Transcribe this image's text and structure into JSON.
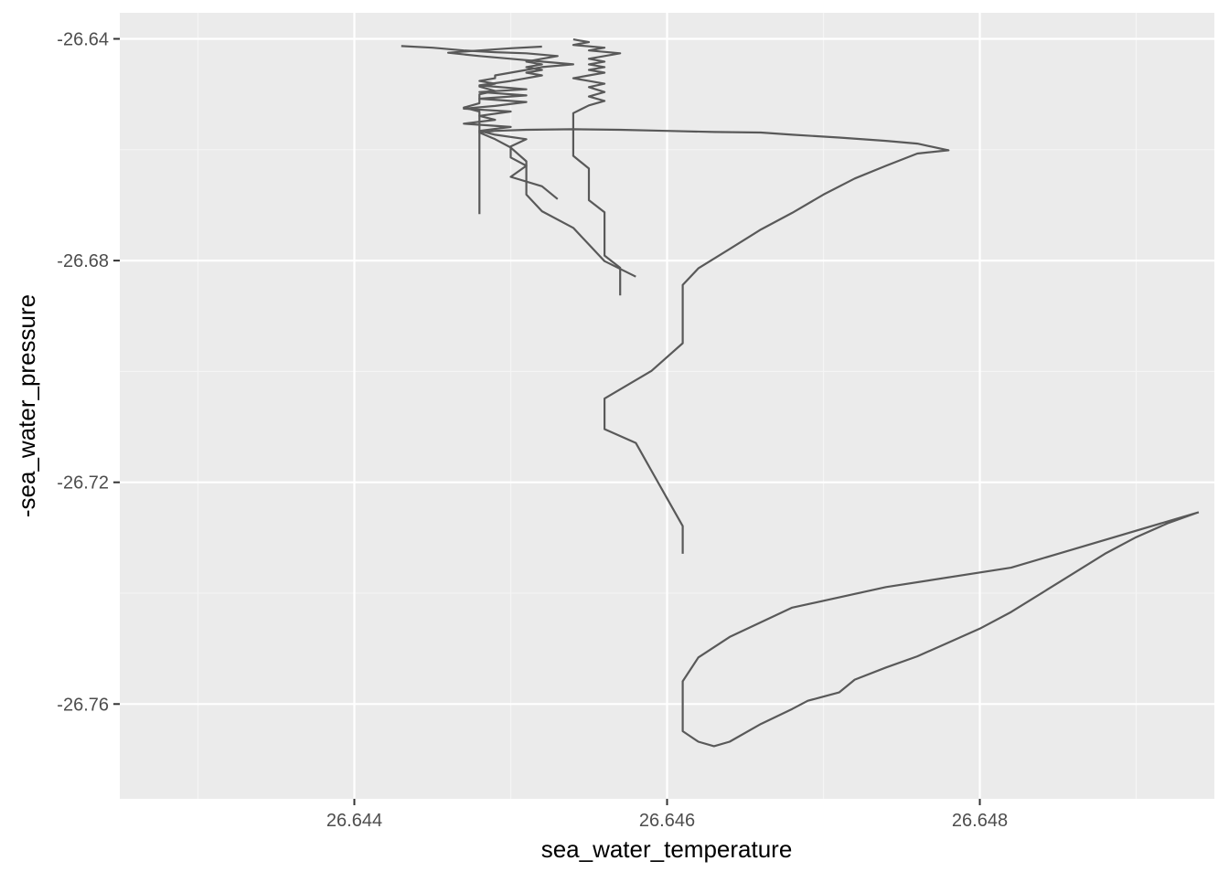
{
  "chart_data": {
    "type": "line",
    "title": "",
    "xlabel": "sea_water_temperature",
    "ylabel": "-sea_water_pressure",
    "xlim": [
      26.6425,
      26.6495
    ],
    "ylim": [
      -26.7771,
      -26.6353
    ],
    "x_ticks": [
      26.644,
      26.646,
      26.648
    ],
    "x_tick_labels": [
      "26.644",
      "26.646",
      "26.648"
    ],
    "y_ticks": [
      -26.64,
      -26.68,
      -26.72,
      -26.76
    ],
    "y_tick_labels": [
      "-26.64",
      "-26.68",
      "-26.72",
      "-26.76"
    ],
    "grid": true,
    "legend": "none",
    "colors": {
      "panel_background": "#EBEBEB",
      "grid_major": "#FFFFFF",
      "grid_minor": "#F5F5F5",
      "line": "#595959",
      "tick_label": "#4D4D4D",
      "axis_title": "#000000"
    },
    "series": [
      {
        "points": [
          [
            26.6494,
            -26.7254
          ],
          [
            26.6485,
            -26.7329
          ],
          [
            26.6482,
            -26.7354
          ],
          [
            26.6474,
            -26.7389
          ],
          [
            26.6468,
            -26.7426
          ],
          [
            26.6464,
            -26.7479
          ],
          [
            26.6462,
            -26.7516
          ],
          [
            26.6461,
            -26.7559
          ],
          [
            26.6461,
            -26.7604
          ],
          [
            26.6461,
            -26.7649
          ],
          [
            26.6462,
            -26.7668
          ],
          [
            26.6463,
            -26.7676
          ],
          [
            26.6464,
            -26.7668
          ],
          [
            26.6466,
            -26.7636
          ],
          [
            26.6468,
            -26.7609
          ],
          [
            26.6469,
            -26.7594
          ],
          [
            26.6471,
            -26.7579
          ],
          [
            26.6472,
            -26.7556
          ],
          [
            26.6474,
            -26.7534
          ],
          [
            26.6476,
            -26.7514
          ],
          [
            26.6478,
            -26.7489
          ],
          [
            26.648,
            -26.7464
          ],
          [
            26.6482,
            -26.7434
          ],
          [
            26.6484,
            -26.7399
          ],
          [
            26.6486,
            -26.7364
          ],
          [
            26.6488,
            -26.7329
          ],
          [
            26.649,
            -26.7299
          ],
          [
            26.6492,
            -26.7274
          ],
          [
            26.6494,
            -26.7254
          ]
        ]
      },
      {
        "points": [
          [
            26.6461,
            -26.7329
          ],
          [
            26.6461,
            -26.7279
          ],
          [
            26.646,
            -26.7229
          ],
          [
            26.6459,
            -26.7179
          ],
          [
            26.6458,
            -26.7129
          ],
          [
            26.6456,
            -26.7104
          ],
          [
            26.6456,
            -26.7049
          ],
          [
            26.6459,
            -26.6999
          ],
          [
            26.6461,
            -26.6949
          ],
          [
            26.6461,
            -26.6899
          ],
          [
            26.6461,
            -26.6844
          ],
          [
            26.6462,
            -26.6814
          ],
          [
            26.6464,
            -26.6779
          ],
          [
            26.6466,
            -26.6744
          ],
          [
            26.6468,
            -26.6714
          ],
          [
            26.647,
            -26.6681
          ],
          [
            26.6472,
            -26.6652
          ],
          [
            26.6474,
            -26.6629
          ],
          [
            26.6476,
            -26.6607
          ],
          [
            26.6478,
            -26.6601
          ],
          [
            26.6476,
            -26.6589
          ],
          [
            26.6474,
            -26.6584
          ],
          [
            26.6471,
            -26.6578
          ],
          [
            26.6468,
            -26.6573
          ],
          [
            26.6466,
            -26.6569
          ],
          [
            26.6463,
            -26.6568
          ],
          [
            26.646,
            -26.6566
          ],
          [
            26.6457,
            -26.6564
          ],
          [
            26.6454,
            -26.6563
          ],
          [
            26.6451,
            -26.6564
          ],
          [
            26.6449,
            -26.6566
          ],
          [
            26.6448,
            -26.6569
          ],
          [
            26.6449,
            -26.6581
          ],
          [
            26.645,
            -26.6596
          ],
          [
            26.6451,
            -26.6621
          ],
          [
            26.6451,
            -26.6651
          ],
          [
            26.6451,
            -26.6681
          ],
          [
            26.6452,
            -26.6711
          ],
          [
            26.6454,
            -26.6741
          ],
          [
            26.6455,
            -26.6771
          ],
          [
            26.6456,
            -26.6801
          ],
          [
            26.6458,
            -26.6829
          ]
        ]
      },
      {
        "points": [
          [
            26.6443,
            -26.6413
          ],
          [
            26.6445,
            -26.6416
          ],
          [
            26.6447,
            -26.6421
          ],
          [
            26.6449,
            -26.6424
          ],
          [
            26.6451,
            -26.6426
          ],
          [
            26.6453,
            -26.6431
          ],
          [
            26.6452,
            -26.6436
          ],
          [
            26.6451,
            -26.6441
          ],
          [
            26.6452,
            -26.6446
          ],
          [
            26.6451,
            -26.6451
          ],
          [
            26.6452,
            -26.6456
          ],
          [
            26.6451,
            -26.6461
          ],
          [
            26.6452,
            -26.6466
          ],
          [
            26.6451,
            -26.6471
          ],
          [
            26.645,
            -26.6476
          ],
          [
            26.6448,
            -26.6484
          ],
          [
            26.6451,
            -26.6491
          ],
          [
            26.6448,
            -26.6496
          ],
          [
            26.6451,
            -26.6502
          ],
          [
            26.6448,
            -26.6508
          ],
          [
            26.6451,
            -26.6514
          ],
          [
            26.6449,
            -26.6521
          ],
          [
            26.6447,
            -26.6526
          ],
          [
            26.645,
            -26.6531
          ],
          [
            26.6448,
            -26.6539
          ],
          [
            26.6449,
            -26.6546
          ],
          [
            26.6447,
            -26.6553
          ],
          [
            26.645,
            -26.6559
          ],
          [
            26.6448,
            -26.6566
          ],
          [
            26.6449,
            -26.6573
          ],
          [
            26.6451,
            -26.6581
          ],
          [
            26.645,
            -26.6594
          ],
          [
            26.645,
            -26.6614
          ],
          [
            26.6451,
            -26.6629
          ],
          [
            26.645,
            -26.6649
          ],
          [
            26.6452,
            -26.6666
          ],
          [
            26.6453,
            -26.6689
          ]
        ]
      },
      {
        "points": [
          [
            26.6454,
            -26.6401
          ],
          [
            26.6455,
            -26.6406
          ],
          [
            26.6454,
            -26.6411
          ],
          [
            26.6456,
            -26.6416
          ],
          [
            26.6455,
            -26.6421
          ],
          [
            26.6457,
            -26.6426
          ],
          [
            26.6456,
            -26.6431
          ],
          [
            26.6455,
            -26.6436
          ],
          [
            26.6456,
            -26.6441
          ],
          [
            26.6455,
            -26.6446
          ],
          [
            26.6456,
            -26.6451
          ],
          [
            26.6455,
            -26.6456
          ],
          [
            26.6456,
            -26.6461
          ],
          [
            26.6455,
            -26.6466
          ],
          [
            26.6454,
            -26.6471
          ],
          [
            26.6455,
            -26.6476
          ],
          [
            26.6456,
            -26.6481
          ],
          [
            26.6455,
            -26.6487
          ],
          [
            26.6456,
            -26.6496
          ],
          [
            26.6455,
            -26.6504
          ],
          [
            26.6456,
            -26.6512
          ],
          [
            26.6455,
            -26.652
          ],
          [
            26.6454,
            -26.6534
          ],
          [
            26.6454,
            -26.6552
          ],
          [
            26.6454,
            -26.6571
          ],
          [
            26.6454,
            -26.6591
          ],
          [
            26.6454,
            -26.6611
          ],
          [
            26.6455,
            -26.6634
          ],
          [
            26.6455,
            -26.6663
          ],
          [
            26.6455,
            -26.6691
          ],
          [
            26.6456,
            -26.6713
          ],
          [
            26.6456,
            -26.6734
          ],
          [
            26.6456,
            -26.6761
          ],
          [
            26.6456,
            -26.6791
          ],
          [
            26.6457,
            -26.6813
          ],
          [
            26.6457,
            -26.6836
          ],
          [
            26.6457,
            -26.6863
          ]
        ]
      },
      {
        "points": [
          [
            26.6452,
            -26.6414
          ],
          [
            26.645,
            -26.6417
          ],
          [
            26.6448,
            -26.6421
          ],
          [
            26.6446,
            -26.6425
          ],
          [
            26.6448,
            -26.6431
          ],
          [
            26.645,
            -26.6436
          ],
          [
            26.6452,
            -26.6441
          ],
          [
            26.6454,
            -26.6446
          ],
          [
            26.6452,
            -26.6451
          ],
          [
            26.6451,
            -26.6456
          ],
          [
            26.645,
            -26.6461
          ],
          [
            26.6449,
            -26.6466
          ],
          [
            26.6449,
            -26.6471
          ],
          [
            26.6448,
            -26.6476
          ],
          [
            26.6449,
            -26.6481
          ],
          [
            26.6448,
            -26.6486
          ],
          [
            26.6449,
            -26.6494
          ],
          [
            26.6448,
            -26.65
          ],
          [
            26.6448,
            -26.6508
          ],
          [
            26.6448,
            -26.6516
          ],
          [
            26.6447,
            -26.6524
          ],
          [
            26.6448,
            -26.6531
          ],
          [
            26.6448,
            -26.6544
          ],
          [
            26.6448,
            -26.6557
          ],
          [
            26.6448,
            -26.6571
          ],
          [
            26.6448,
            -26.6586
          ],
          [
            26.6448,
            -26.6602
          ],
          [
            26.6448,
            -26.6621
          ],
          [
            26.6448,
            -26.6641
          ],
          [
            26.6448,
            -26.6661
          ],
          [
            26.6448,
            -26.6681
          ],
          [
            26.6448,
            -26.6699
          ],
          [
            26.6448,
            -26.6716
          ]
        ]
      }
    ]
  }
}
